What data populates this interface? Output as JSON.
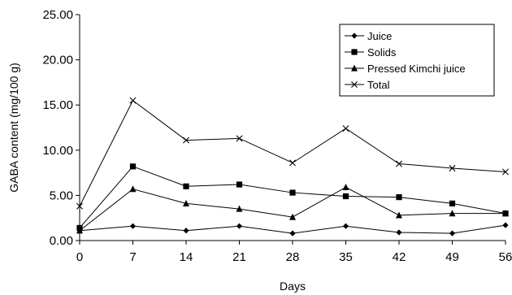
{
  "chart_data": {
    "type": "line",
    "xlabel": "Days",
    "ylabel": "GABA content (mg/100 g)",
    "x": [
      0,
      7,
      14,
      21,
      28,
      35,
      42,
      49,
      56
    ],
    "x_ticks": [
      "0",
      "7",
      "14",
      "21",
      "28",
      "35",
      "42",
      "49",
      "56"
    ],
    "y_ticks": [
      "0.00",
      "5.00",
      "10.00",
      "15.00",
      "20.00",
      "25.00"
    ],
    "ylim": [
      0,
      25
    ],
    "xlim": [
      0,
      56
    ],
    "grid": false,
    "legend_position": "top-right",
    "series": [
      {
        "name": "Juice",
        "marker": "diamond",
        "values": [
          1.1,
          1.6,
          1.1,
          1.6,
          0.8,
          1.6,
          0.9,
          0.8,
          1.7
        ]
      },
      {
        "name": "Solids",
        "marker": "square",
        "values": [
          1.4,
          8.2,
          6.0,
          6.2,
          5.3,
          4.9,
          4.8,
          4.1,
          3.0
        ]
      },
      {
        "name": "Pressed Kimchi juice",
        "marker": "triangle",
        "values": [
          1.1,
          5.7,
          4.1,
          3.5,
          2.6,
          5.9,
          2.8,
          3.0,
          3.0
        ]
      },
      {
        "name": "Total",
        "marker": "x",
        "values": [
          3.8,
          15.5,
          11.1,
          11.3,
          8.6,
          12.4,
          8.5,
          8.0,
          7.6
        ]
      }
    ]
  }
}
